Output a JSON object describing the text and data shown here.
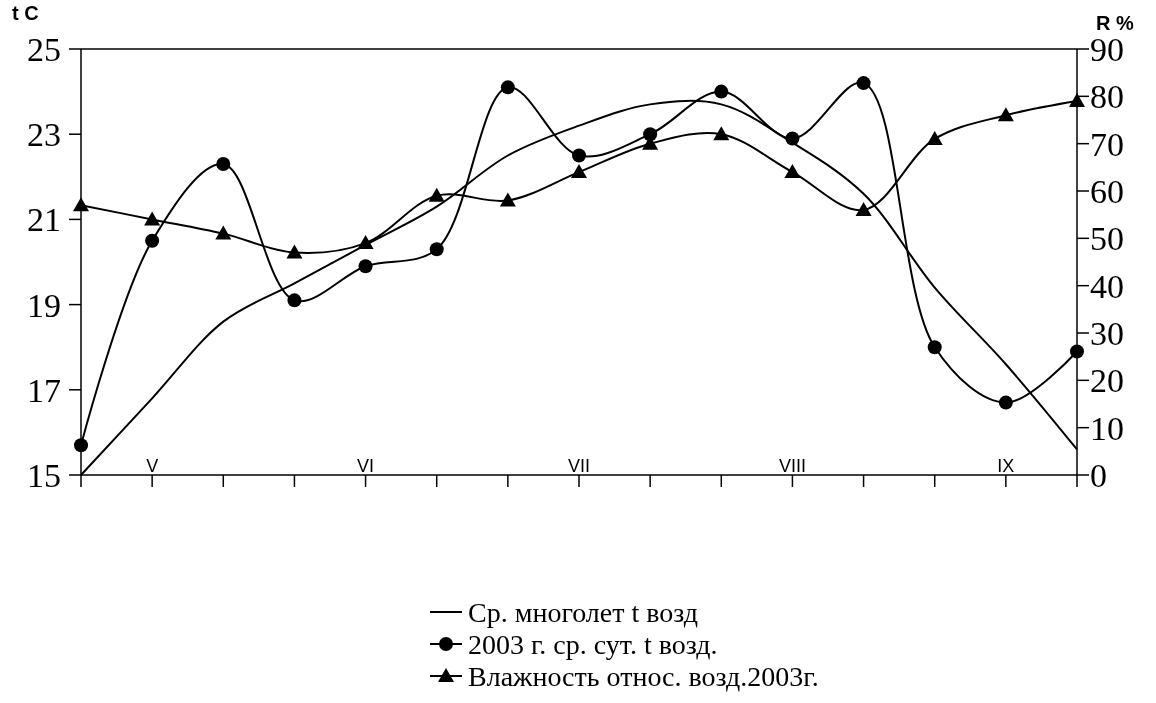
{
  "chart_data": {
    "type": "line",
    "categories": [
      null,
      "V",
      null,
      null,
      "VI",
      null,
      null,
      "VII",
      null,
      null,
      "VIII",
      null,
      null,
      "IX",
      null
    ],
    "ylabel": "t C",
    "y2label": "R %",
    "ylim": [
      15,
      25
    ],
    "yticks": [
      15,
      17,
      19,
      21,
      23,
      25
    ],
    "y2lim": [
      0,
      90
    ],
    "y2ticks": [
      0,
      10,
      20,
      30,
      40,
      50,
      60,
      70,
      80,
      90
    ],
    "legend": "bottom",
    "grid": false,
    "series": [
      {
        "name": "Ср. многолет t возд",
        "color": "#000000",
        "marker": "none",
        "values": [
          15.0,
          16.8,
          18.6,
          19.5,
          20.4,
          21.3,
          22.5,
          23.2,
          23.7,
          23.7,
          22.8,
          21.6,
          19.4,
          17.6,
          15.6
        ]
      },
      {
        "name": "2003 г. ср. сут. t возд.",
        "color": "#000000",
        "marker": "circle",
        "values": [
          15.7,
          20.5,
          22.3,
          19.1,
          19.9,
          20.3,
          24.1,
          22.5,
          23.0,
          24.0,
          22.9,
          24.2,
          18.0,
          16.7,
          17.9
        ]
      },
      {
        "name": "Влажность относ. возд.2003г.",
        "color": "#000000",
        "marker": "triangle",
        "axis": "y2",
        "values": [
          57,
          54,
          51,
          47,
          49,
          59,
          58,
          64,
          70,
          72,
          64,
          56,
          71,
          76,
          79
        ]
      }
    ]
  }
}
